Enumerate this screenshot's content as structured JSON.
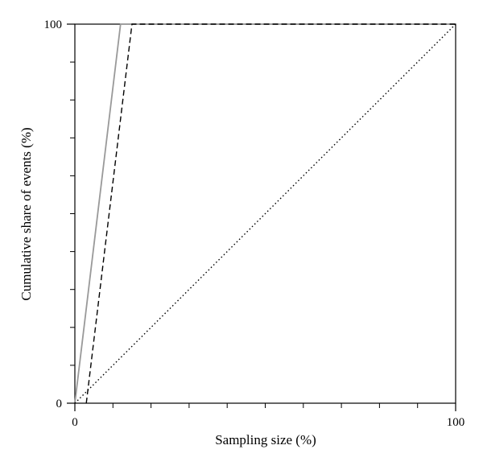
{
  "chart_data": {
    "type": "line",
    "title": "",
    "xlabel": "Sampling size (%)",
    "ylabel": "Cumulative share of events (%)",
    "xlim": [
      0,
      100
    ],
    "ylim": [
      0,
      100
    ],
    "x_tick_labels": [
      "0",
      "100"
    ],
    "y_tick_labels": [
      "0",
      "100"
    ],
    "x_minor_ticks": [
      10,
      20,
      30,
      40,
      50,
      60,
      70,
      80,
      90
    ],
    "y_minor_ticks": [
      10,
      20,
      30,
      40,
      50,
      60,
      70,
      80,
      90
    ],
    "grid": false,
    "legend": "none",
    "series": [
      {
        "style": "solid",
        "color": "#999999",
        "x": [
          0,
          12,
          100
        ],
        "y": [
          0,
          100,
          100
        ]
      },
      {
        "style": "dashed",
        "color": "#000000",
        "x": [
          3,
          15,
          100
        ],
        "y": [
          0,
          100,
          100
        ]
      },
      {
        "style": "dotted",
        "color": "#000000",
        "x": [
          0,
          100
        ],
        "y": [
          0,
          100
        ]
      }
    ]
  }
}
